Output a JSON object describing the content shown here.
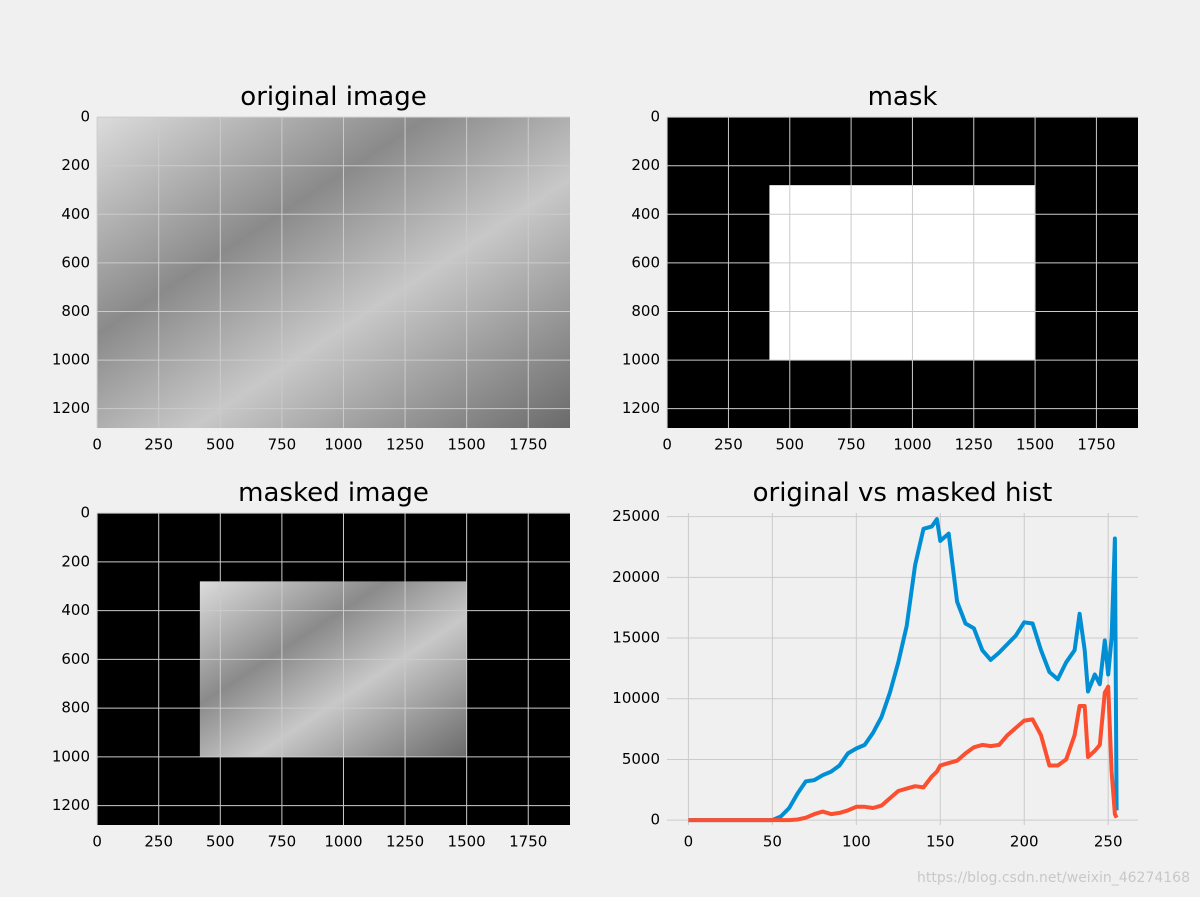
{
  "chart_data": [
    {
      "type": "image",
      "title": "original image",
      "xlim": [
        -0.5,
        1919.5
      ],
      "ylim": [
        1279.5,
        -0.5
      ],
      "xticks": [
        0,
        250,
        500,
        750,
        1000,
        1250,
        1500,
        1750
      ],
      "yticks": [
        0,
        200,
        400,
        600,
        800,
        1000,
        1200
      ],
      "grid": true
    },
    {
      "type": "image",
      "title": "mask",
      "xlim": [
        -0.5,
        1919.5
      ],
      "ylim": [
        1279.5,
        -0.5
      ],
      "xticks": [
        0,
        250,
        500,
        750,
        1000,
        1250,
        1500,
        1750
      ],
      "yticks": [
        0,
        200,
        400,
        600,
        800,
        1000,
        1200
      ],
      "grid": true,
      "background": "#000000",
      "region": {
        "x": [
          417,
          1500
        ],
        "y": [
          280,
          1000
        ]
      },
      "region_color": "#ffffff"
    },
    {
      "type": "image",
      "title": "masked image",
      "xlim": [
        -0.5,
        1919.5
      ],
      "ylim": [
        1279.5,
        -0.5
      ],
      "xticks": [
        0,
        250,
        500,
        750,
        1000,
        1250,
        1500,
        1750
      ],
      "yticks": [
        0,
        200,
        400,
        600,
        800,
        1000,
        1200
      ],
      "grid": true,
      "background": "#000000",
      "region": {
        "x": [
          417,
          1500
        ],
        "y": [
          280,
          1000
        ]
      }
    },
    {
      "type": "line",
      "title": "original vs masked hist",
      "xlim": [
        -12.75,
        267.75
      ],
      "ylim": [
        -400,
        25300
      ],
      "xticks": [
        0,
        50,
        100,
        150,
        200,
        250
      ],
      "yticks": [
        0,
        5000,
        10000,
        15000,
        20000,
        25000
      ],
      "grid": true,
      "x": [
        0,
        50,
        55,
        60,
        65,
        70,
        75,
        80,
        85,
        90,
        95,
        100,
        105,
        110,
        115,
        120,
        125,
        130,
        135,
        140,
        145,
        148,
        150,
        155,
        160,
        165,
        170,
        175,
        180,
        185,
        190,
        195,
        200,
        205,
        210,
        215,
        220,
        225,
        230,
        233,
        236,
        238,
        242,
        245,
        248,
        250,
        252,
        254,
        255
      ],
      "series": [
        {
          "color": "#008fd5",
          "values": [
            0,
            0,
            300,
            1000,
            2200,
            3200,
            3300,
            3700,
            4000,
            4500,
            5500,
            5900,
            6200,
            7200,
            8500,
            10500,
            13000,
            16000,
            21000,
            24000,
            24200,
            24800,
            23000,
            23600,
            18000,
            16200,
            15800,
            14000,
            13200,
            13800,
            14500,
            15200,
            16300,
            16200,
            14000,
            12200,
            11600,
            13000,
            14000,
            17000,
            14000,
            10600,
            12000,
            11200,
            14800,
            12000,
            15000,
            23200,
            800
          ]
        },
        {
          "color": "#fc4f30",
          "values": [
            0,
            0,
            0,
            0,
            50,
            200,
            500,
            700,
            500,
            600,
            800,
            1100,
            1100,
            1000,
            1200,
            1800,
            2400,
            2600,
            2800,
            2700,
            3600,
            4000,
            4500,
            4700,
            4900,
            5500,
            6000,
            6200,
            6100,
            6200,
            7000,
            7600,
            8200,
            8300,
            7000,
            4500,
            4500,
            5000,
            7000,
            9400,
            9400,
            5200,
            5700,
            6200,
            10500,
            11000,
            4000,
            500,
            200
          ]
        }
      ]
    }
  ],
  "watermark": "https://blog.csdn.net/weixin_46274168"
}
